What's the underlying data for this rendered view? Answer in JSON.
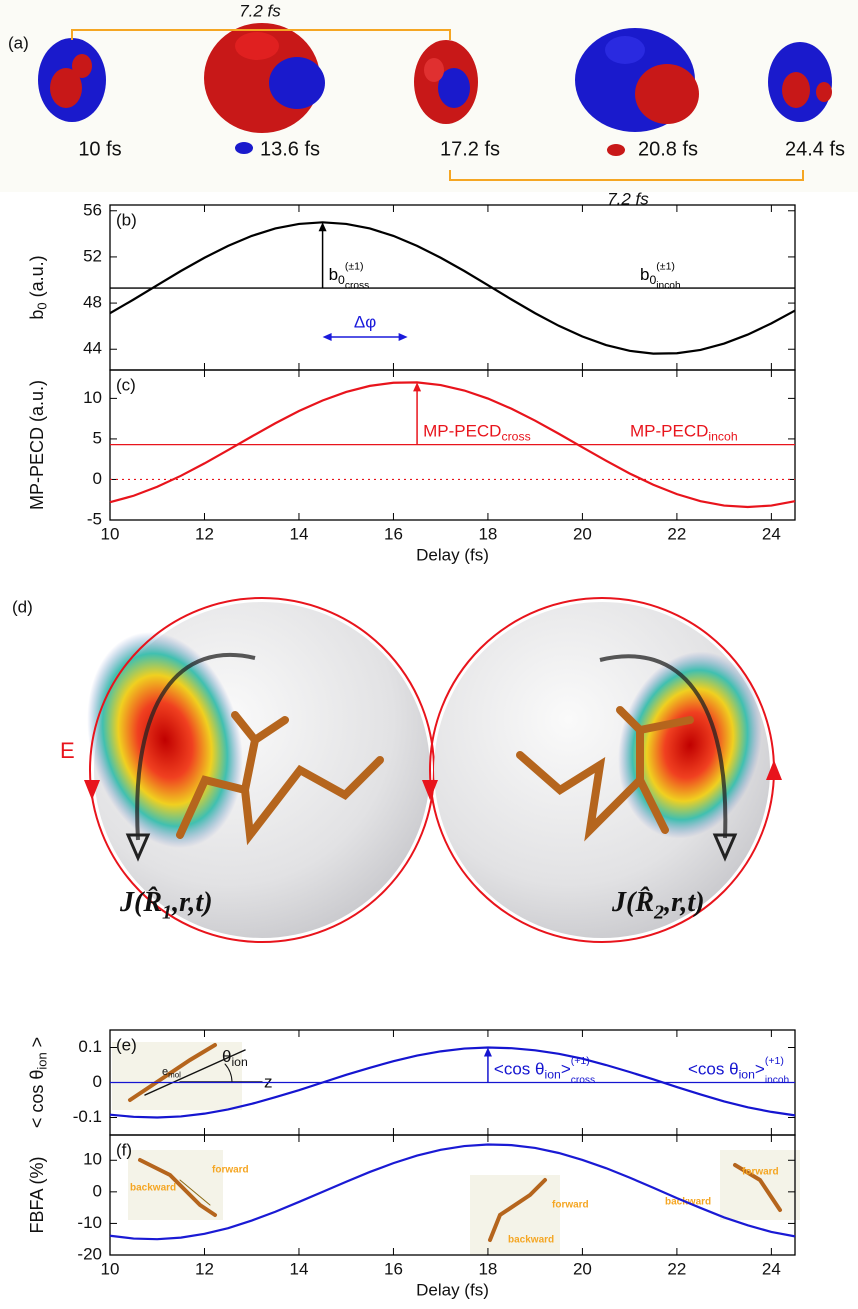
{
  "panel_a": {
    "label": "(a)",
    "period_top": "7.2 fs",
    "period_bottom": "7.2 fs",
    "snapshots": [
      "10 fs",
      "13.6 fs",
      "17.2 fs",
      "20.8 fs",
      "24.4 fs"
    ]
  },
  "panel_d": {
    "label": "(d)",
    "field": "E",
    "current_1": {
      "main": "J(R̂",
      "sub": "1",
      "tail": ",r,t)"
    },
    "current_2": {
      "main": "J(R̂",
      "sub": "2",
      "tail": ",r,t)"
    }
  },
  "inset_e": {
    "angle": {
      "main": "θ",
      "sub": "ion"
    },
    "axis": "z",
    "vector": {
      "main": "e",
      "sub": "mol"
    }
  },
  "inset_f": [
    {
      "backward": "backward",
      "forward": "forward"
    },
    {
      "backward": "backward",
      "forward": "forward"
    },
    {
      "backward": "backward",
      "forward": "forward"
    }
  ],
  "chart_data": [
    {
      "type": "line",
      "label": "(b)",
      "ylabel": {
        "main": "b",
        "sub": "0",
        "tail": " (a.u.)"
      },
      "color": "#000000",
      "x": [
        10,
        10.5,
        11,
        11.5,
        12,
        12.5,
        13,
        13.5,
        14,
        14.5,
        15,
        15.5,
        16,
        16.5,
        17,
        17.5,
        18,
        18.5,
        19,
        19.5,
        20,
        20.5,
        21,
        21.5,
        22,
        22.5,
        23,
        23.5,
        24,
        24.5
      ],
      "values": [
        47.12,
        48.31,
        49.55,
        50.78,
        51.93,
        52.96,
        53.82,
        54.47,
        54.86,
        55.0,
        54.86,
        54.47,
        53.82,
        52.96,
        51.93,
        50.78,
        49.55,
        48.31,
        47.12,
        46.03,
        45.1,
        44.36,
        43.86,
        43.62,
        43.65,
        43.94,
        44.49,
        45.27,
        46.24,
        47.35
      ],
      "incoh": 49.3,
      "xlim": [
        10,
        24.5
      ],
      "xticks": [
        10,
        12,
        14,
        16,
        18,
        20,
        22,
        24
      ],
      "ylim": [
        42.2,
        56.5
      ],
      "yticks": [
        44,
        48,
        52,
        56
      ],
      "cross_label": {
        "main": "b",
        "sub": "0",
        "sup": "(±1)",
        "subsub": "cross"
      },
      "incoh_label": {
        "main": "b",
        "sub": "0",
        "sup": "(±1)",
        "subsub": "incoh"
      },
      "phase_label": "Δφ",
      "phase_arrow": [
        14.5,
        16.3
      ],
      "phase_color": "#1a1adb"
    },
    {
      "type": "line",
      "label": "(c)",
      "ylabel": "MP-PECD (a.u.)",
      "xlabel": "Delay (fs)",
      "color": "#e8141c",
      "x": [
        10,
        10.5,
        11,
        11.5,
        12,
        12.5,
        13,
        13.5,
        14,
        14.5,
        15,
        15.5,
        16,
        16.5,
        17,
        17.5,
        18,
        18.5,
        19,
        19.5,
        20,
        20.5,
        21,
        21.5,
        22,
        22.5,
        23,
        23.5,
        24,
        24.5
      ],
      "values": [
        -2.81,
        -2.01,
        -0.9,
        0.45,
        1.98,
        3.63,
        5.3,
        6.93,
        8.44,
        9.74,
        10.79,
        11.54,
        11.93,
        11.97,
        11.64,
        10.97,
        9.98,
        8.72,
        7.25,
        5.64,
        3.96,
        2.31,
        0.74,
        -0.65,
        -1.81,
        -2.68,
        -3.22,
        -3.4,
        -3.22,
        -2.68
      ],
      "incoh": 4.3,
      "zero_line": true,
      "xlim": [
        10,
        24.5
      ],
      "xticks": [
        10,
        12,
        14,
        16,
        18,
        20,
        22,
        24
      ],
      "ylim": [
        -5,
        13.5
      ],
      "yticks": [
        -5,
        0,
        5,
        10
      ],
      "cross_label": {
        "main": "MP-PECD",
        "sub": "cross"
      },
      "incoh_label": {
        "main": "MP-PECD",
        "sub": "incoh"
      }
    },
    {
      "type": "line",
      "label": "(e)",
      "ylabel": {
        "main": "< cos θ",
        "sub": "ion",
        "tail": " >"
      },
      "color": "#1515d0",
      "x": [
        10,
        10.5,
        11,
        11.5,
        12,
        12.5,
        13,
        13.5,
        14,
        14.5,
        15,
        15.5,
        16,
        16.5,
        17,
        17.5,
        18,
        18.5,
        19,
        19.5,
        20,
        20.5,
        21,
        21.5,
        22,
        22.5,
        23,
        23.5,
        24,
        24.5
      ],
      "values": [
        -0.092,
        -0.098,
        -0.1,
        -0.097,
        -0.089,
        -0.077,
        -0.061,
        -0.042,
        -0.022,
        0,
        0.022,
        0.042,
        0.061,
        0.077,
        0.089,
        0.097,
        0.1,
        0.098,
        0.092,
        0.082,
        0.068,
        0.05,
        0.03,
        0.009,
        -0.013,
        -0.034,
        -0.054,
        -0.071,
        -0.084,
        -0.094
      ],
      "incoh": 0,
      "xlim": [
        10,
        24.5
      ],
      "xticks": [
        10,
        12,
        14,
        16,
        18,
        20,
        22,
        24
      ],
      "ylim": [
        -0.15,
        0.15
      ],
      "yticks": [
        -0.1,
        0,
        0.1
      ],
      "cross_label": {
        "main": "<cos θ",
        "sub": "ion",
        "tail": ">",
        "sup": "(+1)",
        "subsub": "cross"
      },
      "incoh_label": {
        "main": "<cos θ",
        "sub": "ion",
        "tail": ">",
        "sup": "(+1)",
        "subsub": "incoh"
      }
    },
    {
      "type": "line",
      "label": "(f)",
      "ylabel": "FBFA (%)",
      "xlabel": "Delay (fs)",
      "color": "#1a1ad4",
      "x": [
        10,
        10.5,
        11,
        11.5,
        12,
        12.5,
        13,
        13.5,
        14,
        14.5,
        15,
        15.5,
        16,
        16.5,
        17,
        17.5,
        18,
        18.5,
        19,
        19.5,
        20,
        20.5,
        21,
        21.5,
        22,
        22.5,
        23,
        23.5,
        24,
        24.5
      ],
      "values": [
        -13.9,
        -14.8,
        -15.0,
        -14.5,
        -13.3,
        -11.5,
        -9.1,
        -6.3,
        -3.2,
        0,
        3.2,
        6.3,
        9.1,
        11.5,
        13.3,
        14.5,
        15.0,
        14.8,
        13.9,
        12.3,
        10.1,
        7.5,
        4.5,
        1.3,
        -2.0,
        -5.1,
        -8.1,
        -10.6,
        -12.7,
        -14.1
      ],
      "xlim": [
        10,
        24.5
      ],
      "xticks": [
        10,
        12,
        14,
        16,
        18,
        20,
        22,
        24
      ],
      "ylim": [
        -20,
        18
      ],
      "yticks": [
        -20,
        -10,
        0,
        10
      ]
    }
  ]
}
